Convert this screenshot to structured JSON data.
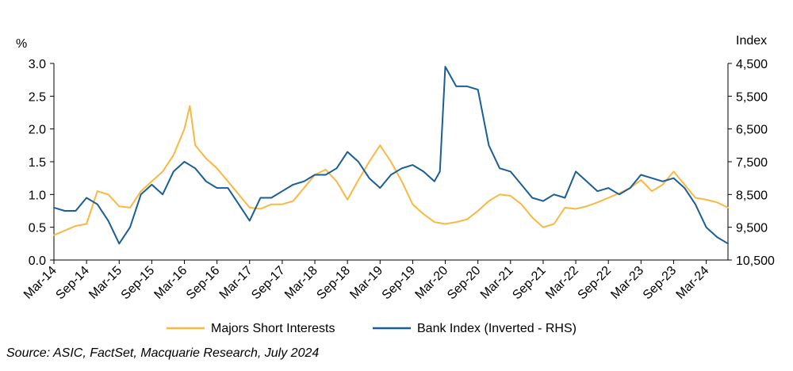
{
  "source_note": "Source: ASIC, FactSet, Macquarie Research, July 2024",
  "chart_data": {
    "type": "line",
    "title": "",
    "xlabel": "",
    "left_axis": {
      "unit_label": "%",
      "range": [
        0,
        3
      ],
      "ticks": [
        0,
        0.5,
        1,
        1.5,
        2,
        2.5,
        3
      ],
      "tick_labels": [
        "0.0",
        "0.5",
        "1.0",
        "1.5",
        "2.0",
        "2.5",
        "3.0"
      ]
    },
    "right_axis": {
      "unit_label": "Index",
      "inverted": true,
      "range": [
        4500,
        10500
      ],
      "ticks": [
        4500,
        5500,
        6500,
        7500,
        8500,
        9500,
        10500
      ],
      "tick_labels": [
        "4,500",
        "5,500",
        "6,500",
        "7,500",
        "8,500",
        "9,500",
        "10,500"
      ]
    },
    "x_axis": {
      "range": [
        "2014-03",
        "2024-07"
      ],
      "ticks": [
        "2014-03",
        "2014-09",
        "2015-03",
        "2015-09",
        "2016-03",
        "2016-09",
        "2017-03",
        "2017-09",
        "2018-03",
        "2018-09",
        "2019-03",
        "2019-09",
        "2020-03",
        "2020-09",
        "2021-03",
        "2021-09",
        "2022-03",
        "2022-09",
        "2023-03",
        "2023-09",
        "2024-03"
      ],
      "tick_labels": [
        "Mar-14",
        "Sep-14",
        "Mar-15",
        "Sep-15",
        "Mar-16",
        "Sep-16",
        "Mar-17",
        "Sep-17",
        "Mar-18",
        "Sep-18",
        "Mar-19",
        "Sep-19",
        "Mar-20",
        "Sep-20",
        "Mar-21",
        "Sep-21",
        "Mar-22",
        "Sep-22",
        "Mar-23",
        "Sep-23",
        "Mar-24"
      ]
    },
    "grid": false,
    "legend_position": "bottom",
    "series": [
      {
        "name": "Majors Short Interests",
        "axis": "left",
        "color": "#F9B841",
        "x": [
          "2014-03",
          "2014-05",
          "2014-07",
          "2014-09",
          "2014-11",
          "2015-01",
          "2015-03",
          "2015-05",
          "2015-07",
          "2015-09",
          "2015-11",
          "2016-01",
          "2016-03",
          "2016-04",
          "2016-05",
          "2016-07",
          "2016-09",
          "2016-11",
          "2017-01",
          "2017-03",
          "2017-05",
          "2017-07",
          "2017-09",
          "2017-11",
          "2018-01",
          "2018-03",
          "2018-05",
          "2018-07",
          "2018-09",
          "2018-11",
          "2019-01",
          "2019-03",
          "2019-05",
          "2019-07",
          "2019-09",
          "2019-11",
          "2020-01",
          "2020-03",
          "2020-05",
          "2020-07",
          "2020-09",
          "2020-11",
          "2021-01",
          "2021-03",
          "2021-05",
          "2021-07",
          "2021-09",
          "2021-11",
          "2022-01",
          "2022-03",
          "2022-05",
          "2022-07",
          "2022-09",
          "2022-11",
          "2023-01",
          "2023-03",
          "2023-05",
          "2023-07",
          "2023-09",
          "2023-11",
          "2024-01",
          "2024-03",
          "2024-05",
          "2024-07"
        ],
        "values": [
          0.38,
          0.45,
          0.52,
          0.55,
          1.05,
          1.0,
          0.82,
          0.8,
          1.05,
          1.2,
          1.35,
          1.6,
          2.0,
          2.35,
          1.75,
          1.55,
          1.4,
          1.2,
          1.0,
          0.8,
          0.78,
          0.85,
          0.85,
          0.9,
          1.1,
          1.3,
          1.38,
          1.2,
          0.92,
          1.22,
          1.5,
          1.75,
          1.5,
          1.2,
          0.85,
          0.7,
          0.58,
          0.55,
          0.58,
          0.62,
          0.75,
          0.9,
          1.0,
          0.98,
          0.85,
          0.65,
          0.5,
          0.55,
          0.8,
          0.78,
          0.82,
          0.88,
          0.95,
          1.02,
          1.1,
          1.22,
          1.05,
          1.15,
          1.35,
          1.15,
          0.95,
          0.92,
          0.88,
          0.8
        ]
      },
      {
        "name": "Bank Index (Inverted - RHS)",
        "axis": "right",
        "color": "#1B5E96",
        "x": [
          "2014-03",
          "2014-05",
          "2014-07",
          "2014-09",
          "2014-11",
          "2015-01",
          "2015-03",
          "2015-05",
          "2015-07",
          "2015-09",
          "2015-11",
          "2016-01",
          "2016-03",
          "2016-05",
          "2016-07",
          "2016-09",
          "2016-11",
          "2017-01",
          "2017-03",
          "2017-05",
          "2017-07",
          "2017-09",
          "2017-11",
          "2018-01",
          "2018-03",
          "2018-05",
          "2018-07",
          "2018-09",
          "2018-11",
          "2019-01",
          "2019-03",
          "2019-05",
          "2019-07",
          "2019-09",
          "2019-11",
          "2020-01",
          "2020-02",
          "2020-03",
          "2020-05",
          "2020-07",
          "2020-09",
          "2020-11",
          "2021-01",
          "2021-03",
          "2021-05",
          "2021-07",
          "2021-09",
          "2021-11",
          "2022-01",
          "2022-03",
          "2022-05",
          "2022-07",
          "2022-09",
          "2022-11",
          "2023-01",
          "2023-03",
          "2023-05",
          "2023-07",
          "2023-09",
          "2023-11",
          "2024-01",
          "2024-03",
          "2024-05",
          "2024-07"
        ],
        "values": [
          8900,
          9000,
          9000,
          8600,
          8800,
          9300,
          10000,
          9500,
          8500,
          8200,
          8500,
          7800,
          7500,
          7700,
          8100,
          8300,
          8300,
          8800,
          9300,
          8600,
          8600,
          8400,
          8200,
          8100,
          7900,
          7900,
          7700,
          7200,
          7500,
          8000,
          8300,
          7900,
          7700,
          7600,
          7800,
          8100,
          7800,
          4600,
          5200,
          5200,
          5300,
          7000,
          7700,
          7800,
          8200,
          8600,
          8700,
          8500,
          8600,
          7800,
          8100,
          8400,
          8300,
          8500,
          8300,
          7900,
          8000,
          8100,
          8000,
          8300,
          8800,
          9500,
          9800,
          10000
        ]
      }
    ]
  }
}
